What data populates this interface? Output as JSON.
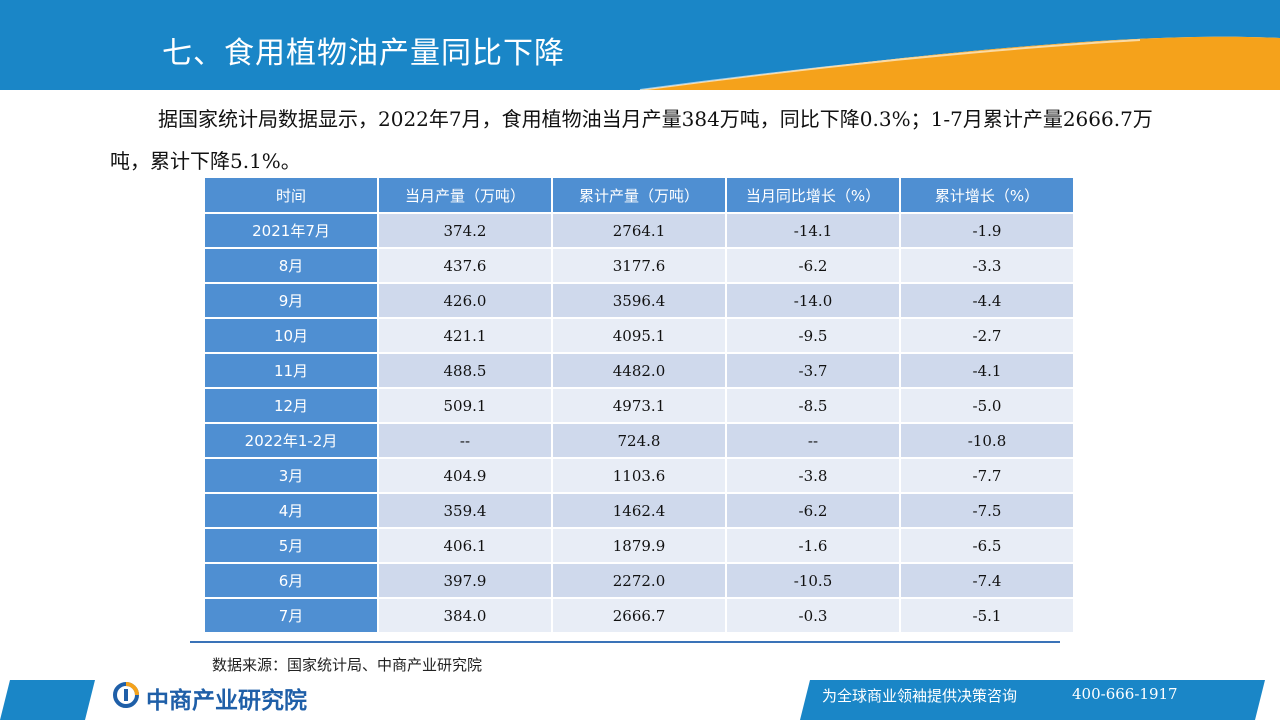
{
  "header": {
    "title": "七、食用植物油产量同比下降"
  },
  "paragraph": {
    "text": "据国家统计局数据显示，2022年7月，食用植物油当月产量384万吨，同比下降0.3%；1-7月累计产量2666.7万吨，累计下降5.1%。"
  },
  "table": {
    "headers": [
      "时间",
      "当月产量（万吨）",
      "累计产量（万吨）",
      "当月同比增长（%）",
      "累计增长（%）"
    ],
    "rows": [
      {
        "time": "2021年7月",
        "monthly": "374.2",
        "cumulative": "2764.1",
        "monthly_yoy": "-14.1",
        "cumulative_growth": "-1.9"
      },
      {
        "time": "8月",
        "monthly": "437.6",
        "cumulative": "3177.6",
        "monthly_yoy": "-6.2",
        "cumulative_growth": "-3.3"
      },
      {
        "time": "9月",
        "monthly": "426.0",
        "cumulative": "3596.4",
        "monthly_yoy": "-14.0",
        "cumulative_growth": "-4.4"
      },
      {
        "time": "10月",
        "monthly": "421.1",
        "cumulative": "4095.1",
        "monthly_yoy": "-9.5",
        "cumulative_growth": "-2.7"
      },
      {
        "time": "11月",
        "monthly": "488.5",
        "cumulative": "4482.0",
        "monthly_yoy": "-3.7",
        "cumulative_growth": "-4.1"
      },
      {
        "time": "12月",
        "monthly": "509.1",
        "cumulative": "4973.1",
        "monthly_yoy": "-8.5",
        "cumulative_growth": "-5.0"
      },
      {
        "time": "2022年1-2月",
        "monthly": "--",
        "cumulative": "724.8",
        "monthly_yoy": "--",
        "cumulative_growth": "-10.8"
      },
      {
        "time": "3月",
        "monthly": "404.9",
        "cumulative": "1103.6",
        "monthly_yoy": "-3.8",
        "cumulative_growth": "-7.7"
      },
      {
        "time": "4月",
        "monthly": "359.4",
        "cumulative": "1462.4",
        "monthly_yoy": "-6.2",
        "cumulative_growth": "-7.5"
      },
      {
        "time": "5月",
        "monthly": "406.1",
        "cumulative": "1879.9",
        "monthly_yoy": "-1.6",
        "cumulative_growth": "-6.5"
      },
      {
        "time": "6月",
        "monthly": "397.9",
        "cumulative": "2272.0",
        "monthly_yoy": "-10.5",
        "cumulative_growth": "-7.4"
      },
      {
        "time": "7月",
        "monthly": "384.0",
        "cumulative": "2666.7",
        "monthly_yoy": "-0.3",
        "cumulative_growth": "-5.1"
      }
    ]
  },
  "source": {
    "text": "数据来源：国家统计局、中商产业研究院"
  },
  "footer": {
    "logo_text": "中商产业研究院",
    "slogan": "为全球商业领袖提供决策咨询",
    "phone": "400-666-1917"
  },
  "colors": {
    "header_blue": "#1a86c7",
    "accent_orange": "#f5a21b",
    "table_header": "#4f8fd2",
    "row_odd": "#cfd9ec",
    "row_even": "#e8edf6"
  }
}
